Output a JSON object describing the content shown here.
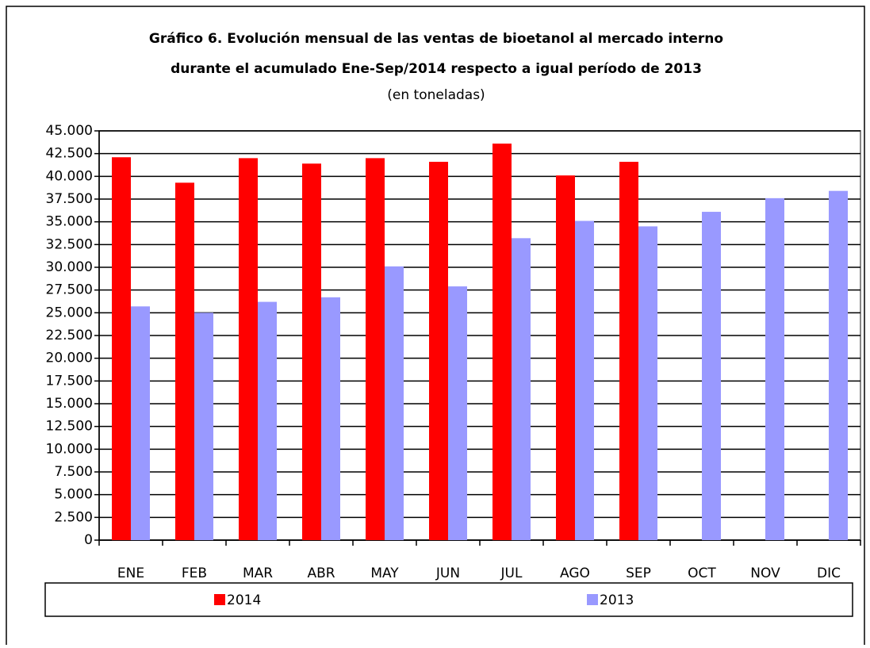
{
  "chart_data": {
    "type": "bar",
    "title": [
      "Gráfico 6. Evolución mensual de las ventas de bioetanol al mercado interno",
      "durante el acumulado Ene-Sep/2014 respecto a igual período de 2013"
    ],
    "subtitle": "(en toneladas)",
    "categories": [
      "ENE",
      "FEB",
      "MAR",
      "ABR",
      "MAY",
      "JUN",
      "JUL",
      "AGO",
      "SEP",
      "OCT",
      "NOV",
      "DIC"
    ],
    "series": [
      {
        "name": "2014",
        "color": "#ff0000",
        "values": [
          42100,
          39300,
          42000,
          41400,
          42000,
          41600,
          43600,
          40100,
          41600,
          null,
          null,
          null
        ]
      },
      {
        "name": "2013",
        "color": "#9999ff",
        "values": [
          25700,
          25000,
          26200,
          26700,
          30100,
          27900,
          33200,
          35100,
          34500,
          36100,
          37600,
          38400
        ]
      }
    ],
    "ylim": [
      0,
      45000
    ],
    "yticks": [
      0,
      {
        "value": 2500,
        "label": "2.500"
      },
      {
        "value": 5000,
        "label": "5.000"
      },
      {
        "value": 7500,
        "label": "7.500"
      },
      {
        "value": 10000,
        "label": "10.000"
      },
      {
        "value": 12500,
        "label": "12.500"
      },
      {
        "value": 15000,
        "label": "15.000"
      },
      {
        "value": 17500,
        "label": "17.500"
      },
      {
        "value": 20000,
        "label": "20.000"
      },
      {
        "value": 22500,
        "label": "22.500"
      },
      {
        "value": 25000,
        "label": "25.000"
      },
      {
        "value": 27500,
        "label": "27.500"
      },
      {
        "value": 30000,
        "label": "30.000"
      },
      {
        "value": 32500,
        "label": "32.500"
      },
      {
        "value": 35000,
        "label": "35.000"
      },
      {
        "value": 37500,
        "label": "37.500"
      },
      {
        "value": 40000,
        "label": "40.000"
      },
      {
        "value": 42500,
        "label": "42.500"
      },
      {
        "value": 45000,
        "label": "45.000"
      }
    ],
    "grid": true,
    "legend": "bottom"
  }
}
